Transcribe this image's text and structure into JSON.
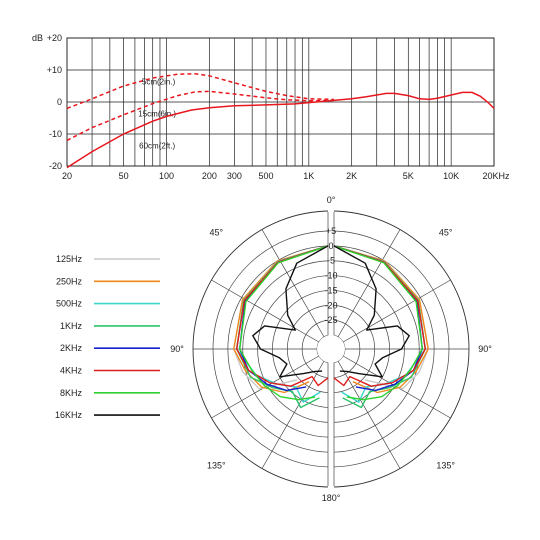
{
  "chart_data": [
    {
      "type": "line",
      "ylabel": "dB",
      "x_scale": "log",
      "xlim": [
        20,
        20000
      ],
      "ylim": [
        -20,
        20
      ],
      "grid": true,
      "x_ticks": [
        "20",
        "50",
        "100",
        "200",
        "300",
        "500",
        "1K",
        "2K",
        "5K",
        "10K",
        "20KHz"
      ],
      "x_tick_values": [
        20,
        50,
        100,
        200,
        300,
        500,
        1000,
        2000,
        5000,
        10000,
        20000
      ],
      "y_ticks": [
        "+20",
        "+10",
        "0",
        "-10",
        "-20"
      ],
      "y_tick_values": [
        20,
        10,
        0,
        -10,
        -20
      ],
      "line_color": "#e8161d",
      "series": [
        {
          "name": "5cm(2in.)",
          "style": "dashed",
          "x": [
            20,
            30,
            50,
            80,
            120,
            160,
            200,
            300,
            500,
            700,
            1000,
            1500
          ],
          "y": [
            -2,
            1,
            5,
            7.5,
            8.7,
            8.8,
            8.2,
            6.0,
            3.3,
            2.0,
            1.0,
            0.8
          ]
        },
        {
          "name": "15cm(6in.)",
          "style": "dashed",
          "x": [
            20,
            30,
            50,
            80,
            120,
            160,
            200,
            300,
            500,
            700,
            1000,
            1500
          ],
          "y": [
            -12,
            -8,
            -4,
            -0.5,
            2.0,
            3.2,
            3.3,
            2.5,
            1.3,
            0.7,
            0.4,
            0.5
          ]
        },
        {
          "name": "60cm(2ft.)",
          "style": "solid",
          "x": [
            20,
            30,
            50,
            80,
            100,
            150,
            200,
            300,
            500,
            800,
            1000,
            1500,
            2000,
            2500,
            3000,
            3500,
            4000,
            5000,
            6000,
            7000,
            8000,
            10000,
            12000,
            14000,
            16000,
            18000,
            20000
          ],
          "y": [
            -20.5,
            -15.5,
            -10,
            -6,
            -4.5,
            -2.5,
            -1.8,
            -1.2,
            -0.9,
            -0.6,
            -0.2,
            0.5,
            1.0,
            1.6,
            2.2,
            2.7,
            2.7,
            2.0,
            1.0,
            0.8,
            1.2,
            2.2,
            3.0,
            3.0,
            1.8,
            0.0,
            -2.0
          ]
        }
      ]
    },
    {
      "type": "polar",
      "angle_labels": [
        "0°",
        "45°",
        "90°",
        "135°",
        "180°",
        "45°",
        "90°",
        "135°"
      ],
      "angle_values": [
        0,
        -45,
        -90,
        -135,
        180,
        45,
        90,
        135
      ],
      "radial_labels": [
        "+5",
        "0",
        "-5",
        "-10",
        "-15",
        "-20",
        "-25"
      ],
      "radial_values": [
        5,
        0,
        -5,
        -10,
        -15,
        -20,
        -25
      ],
      "rlim": [
        -30,
        5
      ],
      "symmetric": true,
      "legend_position": "left",
      "series": [
        {
          "name": "125Hz",
          "color": "#c8c8c8",
          "angles": [
            0,
            30,
            60,
            90,
            105,
            120,
            135
          ],
          "values": [
            0,
            -0.5,
            -1.5,
            -3,
            -5,
            -8,
            -20
          ]
        },
        {
          "name": "250Hz",
          "color": "#f08a1e",
          "angles": [
            0,
            30,
            60,
            90,
            105,
            120,
            135,
            150
          ],
          "values": [
            0,
            -0.5,
            -1.5,
            -3,
            -6,
            -9,
            -14,
            -22
          ]
        },
        {
          "name": "500Hz",
          "color": "#3ad6cc",
          "angles": [
            0,
            30,
            60,
            90,
            110,
            125,
            140,
            155,
            170
          ],
          "values": [
            0,
            -0.8,
            -2,
            -4,
            -9,
            -14,
            -18,
            -15,
            -20
          ]
        },
        {
          "name": "1KHz",
          "color": "#2bc46b",
          "angles": [
            0,
            30,
            60,
            90,
            110,
            125,
            140,
            155,
            170
          ],
          "values": [
            0,
            -1,
            -2,
            -4,
            -7,
            -12,
            -16,
            -13,
            -18
          ]
        },
        {
          "name": "2KHz",
          "color": "#1520d0",
          "angles": [
            0,
            30,
            60,
            90,
            105,
            120,
            135,
            150
          ],
          "values": [
            0,
            -1,
            -2.5,
            -5,
            -7,
            -11,
            -15,
            -20
          ]
        },
        {
          "name": "4KHz",
          "color": "#e01b1b",
          "angles": [
            0,
            30,
            60,
            90,
            105,
            120,
            135,
            150,
            165,
            180
          ],
          "values": [
            0,
            -1,
            -2.2,
            -4,
            -7,
            -12,
            -17,
            -24,
            -22,
            -25
          ]
        },
        {
          "name": "8KHz",
          "color": "#2fd12f",
          "angles": [
            0,
            30,
            60,
            90,
            105,
            120,
            135,
            150,
            165
          ],
          "values": [
            0,
            -1.2,
            -2.8,
            -5,
            -8,
            -10,
            -12,
            -15,
            -18
          ]
        },
        {
          "name": "16KHz",
          "color": "#111111",
          "angles": [
            0,
            20,
            35,
            50,
            60,
            70,
            80,
            90,
            100,
            110,
            120,
            135,
            150,
            165
          ],
          "values": [
            0,
            -4,
            -10,
            -17,
            -22,
            -12,
            -9,
            -12,
            -18,
            -20,
            -16,
            -23,
            -26,
            -27
          ]
        }
      ]
    }
  ]
}
